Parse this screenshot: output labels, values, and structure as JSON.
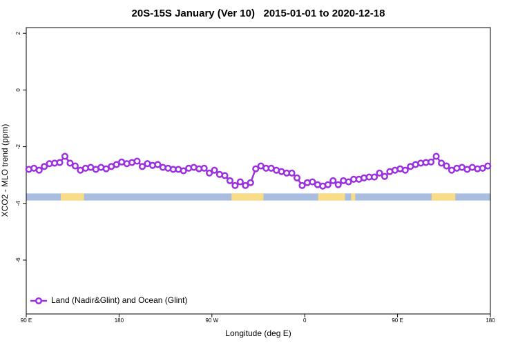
{
  "chart_data": {
    "type": "line",
    "title": "20S-15S January (Ver 10)   2015-01-01 to 2020-12-18",
    "x_label": "Longitude (deg E)",
    "y_label": "XCO2 - MLO trend (ppm)",
    "xlim": [
      90,
      540
    ],
    "ylim": [
      -7.9,
      2.2
    ],
    "xticks": [
      {
        "value": 90,
        "label": "90 E"
      },
      {
        "value": 180,
        "label": "180"
      },
      {
        "value": 270,
        "label": "90 W"
      },
      {
        "value": 360,
        "label": "0"
      },
      {
        "value": 450,
        "label": "90 E"
      },
      {
        "value": 540,
        "label": "180"
      }
    ],
    "yticks": [
      2,
      0,
      -2,
      -4,
      -6
    ],
    "legend": "bottom-left",
    "x": [
      92.5,
      97.5,
      102.5,
      107.5,
      112.5,
      117.5,
      122.5,
      127.5,
      132.5,
      137.5,
      142.5,
      147.5,
      152.5,
      157.5,
      162.5,
      167.5,
      172.5,
      177.5,
      182.5,
      187.5,
      192.5,
      197.5,
      202.5,
      207.5,
      212.5,
      217.5,
      222.5,
      227.5,
      232.5,
      237.5,
      242.5,
      247.5,
      252.5,
      257.5,
      262.5,
      267.5,
      272.5,
      277.5,
      282.5,
      287.5,
      292.5,
      297.5,
      302.5,
      307.5,
      312.5,
      317.5,
      322.5,
      327.5,
      332.5,
      337.5,
      342.5,
      347.5,
      352.5,
      357.5,
      362.5,
      367.5,
      372.5,
      377.5,
      382.5,
      387.5,
      392.5,
      397.5,
      402.5,
      407.5,
      412.5,
      417.5,
      422.5,
      427.5,
      432.5,
      437.5,
      442.5,
      447.5,
      452.5,
      457.5,
      462.5,
      467.5,
      472.5,
      477.5,
      482.5,
      487.5,
      492.5,
      497.5,
      502.5,
      507.5,
      512.5,
      517.5,
      522.5,
      527.5,
      532.5,
      537.5
    ],
    "series": [
      {
        "name": "Land (Nadir&Glint) and Ocean (Glint)",
        "color": "#9b30e0",
        "values": [
          -2.8,
          -2.76,
          -2.83,
          -2.7,
          -2.6,
          -2.58,
          -2.56,
          -2.34,
          -2.58,
          -2.68,
          -2.83,
          -2.76,
          -2.73,
          -2.8,
          -2.73,
          -2.78,
          -2.7,
          -2.63,
          -2.54,
          -2.6,
          -2.56,
          -2.51,
          -2.7,
          -2.6,
          -2.66,
          -2.63,
          -2.73,
          -2.76,
          -2.8,
          -2.8,
          -2.85,
          -2.76,
          -2.73,
          -2.78,
          -2.76,
          -2.93,
          -2.83,
          -2.98,
          -3.02,
          -3.2,
          -3.37,
          -3.24,
          -3.37,
          -3.27,
          -2.78,
          -2.68,
          -2.76,
          -2.76,
          -2.83,
          -2.88,
          -2.93,
          -2.93,
          -3.1,
          -3.37,
          -3.27,
          -3.24,
          -3.34,
          -3.39,
          -3.34,
          -3.2,
          -3.34,
          -3.2,
          -3.24,
          -3.15,
          -3.15,
          -3.1,
          -3.07,
          -3.07,
          -2.93,
          -3.05,
          -2.88,
          -2.83,
          -2.78,
          -2.83,
          -2.7,
          -2.63,
          -2.58,
          -2.56,
          -2.54,
          -2.34,
          -2.58,
          -2.68,
          -2.83,
          -2.76,
          -2.73,
          -2.8,
          -2.73,
          -2.78,
          -2.76,
          -2.68
        ]
      }
    ],
    "surface_band": {
      "y": [
        -3.9,
        -3.65
      ],
      "ocean_color": "#a8bddf",
      "land_color": "#f8dc86",
      "land_x": [
        [
          123.5,
          146
        ],
        [
          289,
          320
        ],
        [
          373,
          399
        ],
        [
          405,
          409
        ],
        [
          483,
          506
        ]
      ]
    }
  }
}
